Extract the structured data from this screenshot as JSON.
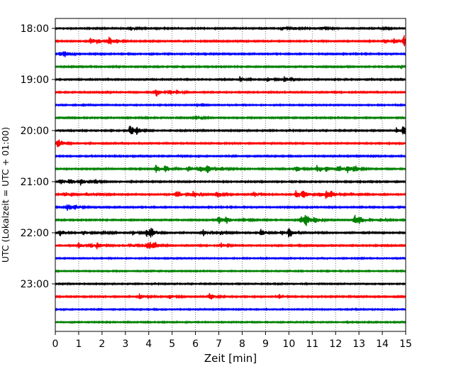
{
  "chart_data": {
    "type": "line",
    "chart_kind": "helicorder",
    "title": "",
    "xlabel": "Zeit  [min]",
    "ylabel": "UTC (Lokalzeit = UTC + 01:00)",
    "xlim": [
      0,
      15
    ],
    "x_ticks": [
      0,
      1,
      2,
      3,
      4,
      5,
      6,
      7,
      8,
      9,
      10,
      11,
      12,
      13,
      14,
      15
    ],
    "y_tick_labels": [
      "18:00",
      "19:00",
      "20:00",
      "21:00",
      "22:00",
      "23:00"
    ],
    "y_tick_rows": [
      0,
      4,
      8,
      12,
      16,
      20
    ],
    "grid": "vertical dotted",
    "row_minutes": 15,
    "trace_colors": [
      "#000000",
      "#ff0000",
      "#0000ff",
      "#008000"
    ],
    "series": [
      {
        "start": "18:00",
        "noise": 0.9,
        "events": [
          [
            3.2,
            2.5
          ],
          [
            9.7,
            2.2
          ],
          [
            10.2,
            2.0
          ],
          [
            11.4,
            2.0
          ],
          [
            13.9,
            1.8
          ]
        ]
      },
      {
        "start": "18:15",
        "noise": 0.9,
        "events": [
          [
            1.5,
            4.5
          ],
          [
            1.8,
            3.0
          ],
          [
            2.3,
            6.0
          ],
          [
            2.6,
            2.5
          ],
          [
            14.1,
            3.5
          ],
          [
            14.5,
            3.5
          ],
          [
            14.9,
            8.0
          ]
        ]
      },
      {
        "start": "18:30",
        "noise": 0.9,
        "events": [
          [
            0.4,
            4.5
          ],
          [
            0.2,
            3.0
          ]
        ]
      },
      {
        "start": "18:45",
        "noise": 0.9,
        "events": [
          [
            14.8,
            2.0
          ]
        ]
      },
      {
        "start": "19:00",
        "noise": 0.9,
        "events": [
          [
            7.9,
            3.0
          ],
          [
            9.1,
            2.8
          ],
          [
            9.8,
            3.2
          ]
        ]
      },
      {
        "start": "19:15",
        "noise": 0.9,
        "events": [
          [
            4.3,
            5.5
          ],
          [
            4.9,
            4.0
          ],
          [
            5.2,
            2.5
          ]
        ]
      },
      {
        "start": "19:30",
        "noise": 0.8,
        "events": [
          [
            6.1,
            1.5
          ]
        ]
      },
      {
        "start": "19:45",
        "noise": 0.9,
        "events": [
          [
            6.0,
            4.0
          ]
        ]
      },
      {
        "start": "20:00",
        "noise": 0.9,
        "events": [
          [
            3.2,
            8.0
          ],
          [
            3.5,
            3.5
          ],
          [
            14.6,
            3.0
          ],
          [
            14.9,
            7.0
          ]
        ]
      },
      {
        "start": "20:15",
        "noise": 0.9,
        "events": [
          [
            0.1,
            6.0
          ],
          [
            14.8,
            2.5
          ]
        ]
      },
      {
        "start": "20:30",
        "noise": 0.9,
        "events": []
      },
      {
        "start": "20:45",
        "noise": 0.9,
        "events": [
          [
            4.3,
            5.5
          ],
          [
            4.7,
            5.0
          ],
          [
            5.7,
            5.0
          ],
          [
            6.2,
            5.5
          ],
          [
            6.5,
            5.5
          ],
          [
            7.1,
            3.0
          ],
          [
            10.3,
            4.0
          ],
          [
            11.2,
            5.5
          ],
          [
            11.6,
            5.0
          ],
          [
            12.1,
            5.0
          ],
          [
            12.5,
            6.0
          ],
          [
            12.8,
            4.0
          ]
        ]
      },
      {
        "start": "21:00",
        "noise": 0.9,
        "events": [
          [
            0.2,
            4.5
          ],
          [
            0.6,
            5.0
          ],
          [
            1.1,
            4.5
          ],
          [
            1.7,
            3.0
          ]
        ]
      },
      {
        "start": "21:15",
        "noise": 0.9,
        "events": [
          [
            0.4,
            3.0
          ],
          [
            1.3,
            3.0
          ],
          [
            1.9,
            3.0
          ],
          [
            5.2,
            6.0
          ],
          [
            5.9,
            5.0
          ],
          [
            6.9,
            5.0
          ],
          [
            8.5,
            3.5
          ],
          [
            10.3,
            5.5
          ],
          [
            10.6,
            7.0
          ],
          [
            11.3,
            4.0
          ],
          [
            11.6,
            6.0
          ],
          [
            11.8,
            4.0
          ],
          [
            12.7,
            3.0
          ]
        ]
      },
      {
        "start": "21:30",
        "noise": 0.9,
        "events": [
          [
            0.5,
            5.0
          ],
          [
            0.8,
            3.0
          ]
        ]
      },
      {
        "start": "21:45",
        "noise": 0.9,
        "events": [
          [
            7.0,
            6.0
          ],
          [
            7.3,
            5.0
          ],
          [
            8.0,
            3.5
          ],
          [
            10.5,
            6.5
          ],
          [
            10.7,
            7.5
          ],
          [
            11.1,
            4.0
          ],
          [
            12.8,
            7.0
          ],
          [
            13.0,
            4.0
          ],
          [
            13.9,
            3.0
          ]
        ]
      },
      {
        "start": "22:00",
        "noise": 0.9,
        "events": [
          [
            0.2,
            5.0
          ],
          [
            1.2,
            3.0
          ],
          [
            2.0,
            3.0
          ],
          [
            3.3,
            3.0
          ],
          [
            3.9,
            6.0
          ],
          [
            4.1,
            5.0
          ],
          [
            6.3,
            4.5
          ],
          [
            7.1,
            3.0
          ],
          [
            8.8,
            4.5
          ],
          [
            9.7,
            3.0
          ],
          [
            10.0,
            7.5
          ]
        ]
      },
      {
        "start": "22:15",
        "noise": 0.9,
        "events": [
          [
            1.0,
            4.5
          ],
          [
            1.5,
            3.0
          ],
          [
            1.8,
            5.0
          ],
          [
            3.2,
            3.0
          ],
          [
            3.9,
            4.5
          ],
          [
            4.2,
            5.0
          ],
          [
            4.0,
            3.0
          ],
          [
            7.1,
            3.0
          ]
        ]
      },
      {
        "start": "22:30",
        "noise": 0.8,
        "events": []
      },
      {
        "start": "22:45",
        "noise": 0.8,
        "events": []
      },
      {
        "start": "23:00",
        "noise": 0.8,
        "events": []
      },
      {
        "start": "23:15",
        "noise": 0.9,
        "events": [
          [
            3.6,
            4.0
          ],
          [
            4.9,
            3.5
          ],
          [
            6.6,
            5.5
          ],
          [
            9.6,
            3.5
          ]
        ]
      },
      {
        "start": "23:30",
        "noise": 0.8,
        "events": []
      },
      {
        "start": "23:45",
        "noise": 0.8,
        "events": []
      }
    ]
  }
}
